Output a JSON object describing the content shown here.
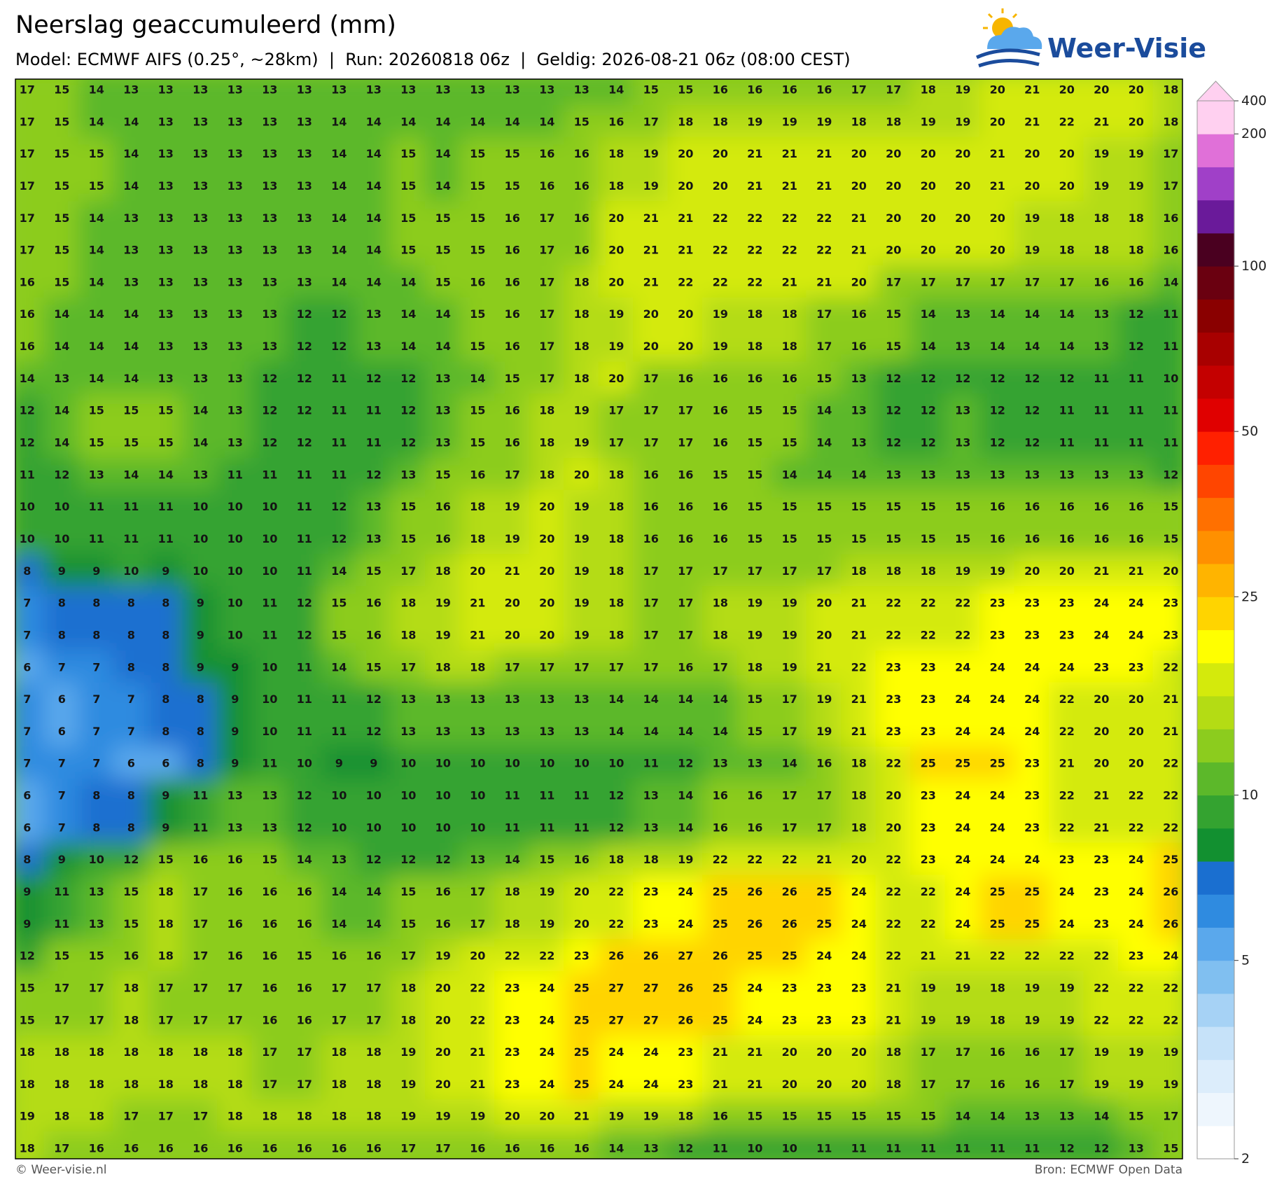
{
  "chart_data": {
    "type": "heatmap",
    "title": "Neerslag geaccumuleerd (mm)",
    "subtitle": "Model: ECMWF AIFS (0.25°, ~28km)  |  Run: 20260818 06z  |  Geldig: 2026-08-21 06z (08:00 CEST)",
    "values": [
      [
        17,
        15,
        14,
        13,
        13,
        13,
        13,
        13,
        13,
        13,
        13,
        13,
        13,
        13,
        13,
        13,
        13,
        14,
        15,
        15,
        16,
        16,
        16,
        16,
        17,
        17,
        18,
        19,
        20,
        21,
        20,
        20,
        20,
        18
      ],
      [
        17,
        15,
        14,
        14,
        13,
        13,
        13,
        13,
        13,
        14,
        14,
        14,
        14,
        14,
        14,
        14,
        15,
        16,
        17,
        18,
        18,
        19,
        19,
        19,
        18,
        18,
        19,
        19,
        20,
        21,
        22,
        21,
        20,
        18
      ],
      [
        17,
        15,
        15,
        14,
        13,
        13,
        13,
        13,
        13,
        14,
        14,
        15,
        14,
        15,
        15,
        16,
        16,
        18,
        19,
        20,
        20,
        21,
        21,
        21,
        20,
        20,
        20,
        20,
        21,
        20,
        20,
        19,
        19,
        17
      ],
      [
        17,
        15,
        15,
        14,
        13,
        13,
        13,
        13,
        13,
        14,
        14,
        15,
        14,
        15,
        15,
        16,
        16,
        18,
        19,
        20,
        20,
        21,
        21,
        21,
        20,
        20,
        20,
        20,
        21,
        20,
        20,
        19,
        19,
        17
      ],
      [
        17,
        15,
        14,
        13,
        13,
        13,
        13,
        13,
        13,
        14,
        14,
        15,
        15,
        15,
        16,
        17,
        16,
        20,
        21,
        21,
        22,
        22,
        22,
        22,
        21,
        20,
        20,
        20,
        20,
        19,
        18,
        18,
        18,
        16
      ],
      [
        17,
        15,
        14,
        13,
        13,
        13,
        13,
        13,
        13,
        14,
        14,
        15,
        15,
        15,
        16,
        17,
        16,
        20,
        21,
        21,
        22,
        22,
        22,
        22,
        21,
        20,
        20,
        20,
        20,
        19,
        18,
        18,
        18,
        16
      ],
      [
        16,
        15,
        14,
        13,
        13,
        13,
        13,
        13,
        13,
        14,
        14,
        14,
        15,
        16,
        16,
        17,
        18,
        20,
        21,
        22,
        22,
        22,
        21,
        21,
        20,
        17,
        17,
        17,
        17,
        17,
        17,
        16,
        16,
        14
      ],
      [
        16,
        14,
        14,
        14,
        13,
        13,
        13,
        13,
        12,
        12,
        13,
        14,
        14,
        15,
        16,
        17,
        18,
        19,
        20,
        20,
        19,
        18,
        18,
        17,
        16,
        15,
        14,
        13,
        14,
        14,
        14,
        13,
        12,
        11
      ],
      [
        16,
        14,
        14,
        14,
        13,
        13,
        13,
        13,
        12,
        12,
        13,
        14,
        14,
        15,
        16,
        17,
        18,
        19,
        20,
        20,
        19,
        18,
        18,
        17,
        16,
        15,
        14,
        13,
        14,
        14,
        14,
        13,
        12,
        11
      ],
      [
        14,
        13,
        14,
        14,
        13,
        13,
        13,
        12,
        12,
        11,
        12,
        12,
        13,
        14,
        15,
        17,
        18,
        20,
        17,
        16,
        16,
        16,
        16,
        15,
        13,
        12,
        12,
        12,
        12,
        12,
        12,
        11,
        11,
        10
      ],
      [
        12,
        14,
        15,
        15,
        15,
        14,
        13,
        12,
        12,
        11,
        11,
        12,
        13,
        15,
        16,
        18,
        19,
        17,
        17,
        17,
        16,
        15,
        15,
        14,
        13,
        12,
        12,
        13,
        12,
        12,
        11,
        11,
        11,
        11
      ],
      [
        12,
        14,
        15,
        15,
        15,
        14,
        13,
        12,
        12,
        11,
        11,
        12,
        13,
        15,
        16,
        18,
        19,
        17,
        17,
        17,
        16,
        15,
        15,
        14,
        13,
        12,
        12,
        13,
        12,
        12,
        11,
        11,
        11,
        11
      ],
      [
        11,
        12,
        13,
        14,
        14,
        13,
        11,
        11,
        11,
        11,
        12,
        13,
        15,
        16,
        17,
        18,
        20,
        18,
        16,
        16,
        15,
        15,
        14,
        14,
        14,
        13,
        13,
        13,
        13,
        13,
        13,
        13,
        13,
        12
      ],
      [
        10,
        10,
        11,
        11,
        11,
        10,
        10,
        10,
        11,
        12,
        13,
        15,
        16,
        18,
        19,
        20,
        19,
        18,
        16,
        16,
        16,
        15,
        15,
        15,
        15,
        15,
        15,
        15,
        16,
        16,
        16,
        16,
        16,
        15
      ],
      [
        10,
        10,
        11,
        11,
        11,
        10,
        10,
        10,
        11,
        12,
        13,
        15,
        16,
        18,
        19,
        20,
        19,
        18,
        16,
        16,
        16,
        15,
        15,
        15,
        15,
        15,
        15,
        15,
        16,
        16,
        16,
        16,
        16,
        15
      ],
      [
        8,
        9,
        9,
        10,
        9,
        10,
        10,
        10,
        11,
        14,
        15,
        17,
        18,
        20,
        21,
        20,
        19,
        18,
        17,
        17,
        17,
        17,
        17,
        17,
        18,
        18,
        18,
        19,
        19,
        20,
        20,
        21,
        21,
        20
      ],
      [
        7,
        8,
        8,
        8,
        8,
        9,
        10,
        11,
        12,
        15,
        16,
        18,
        19,
        21,
        20,
        20,
        19,
        18,
        17,
        17,
        18,
        19,
        19,
        20,
        21,
        22,
        22,
        22,
        23,
        23,
        23,
        24,
        24,
        23
      ],
      [
        7,
        8,
        8,
        8,
        8,
        9,
        10,
        11,
        12,
        15,
        16,
        18,
        19,
        21,
        20,
        20,
        19,
        18,
        17,
        17,
        18,
        19,
        19,
        20,
        21,
        22,
        22,
        22,
        23,
        23,
        23,
        24,
        24,
        23
      ],
      [
        6,
        7,
        7,
        8,
        8,
        9,
        9,
        10,
        11,
        14,
        15,
        17,
        18,
        18,
        17,
        17,
        17,
        17,
        17,
        16,
        17,
        18,
        19,
        21,
        22,
        23,
        23,
        24,
        24,
        24,
        24,
        23,
        23,
        22
      ],
      [
        7,
        6,
        7,
        7,
        8,
        8,
        9,
        10,
        11,
        11,
        12,
        13,
        13,
        13,
        13,
        13,
        13,
        14,
        14,
        14,
        14,
        15,
        17,
        19,
        21,
        23,
        23,
        24,
        24,
        24,
        22,
        20,
        20,
        21
      ],
      [
        7,
        6,
        7,
        7,
        8,
        8,
        9,
        10,
        11,
        11,
        12,
        13,
        13,
        13,
        13,
        13,
        13,
        14,
        14,
        14,
        14,
        15,
        17,
        19,
        21,
        23,
        23,
        24,
        24,
        24,
        22,
        20,
        20,
        21
      ],
      [
        7,
        7,
        7,
        6,
        6,
        8,
        9,
        11,
        10,
        9,
        9,
        10,
        10,
        10,
        10,
        10,
        10,
        10,
        11,
        12,
        13,
        13,
        14,
        16,
        18,
        22,
        25,
        25,
        25,
        23,
        21,
        20,
        20,
        22
      ],
      [
        6,
        7,
        8,
        8,
        9,
        11,
        13,
        13,
        12,
        10,
        10,
        10,
        10,
        10,
        11,
        11,
        11,
        12,
        13,
        14,
        16,
        16,
        17,
        17,
        18,
        20,
        23,
        24,
        24,
        23,
        22,
        21,
        22,
        22
      ],
      [
        6,
        7,
        8,
        8,
        9,
        11,
        13,
        13,
        12,
        10,
        10,
        10,
        10,
        10,
        11,
        11,
        11,
        12,
        13,
        14,
        16,
        16,
        17,
        17,
        18,
        20,
        23,
        24,
        24,
        23,
        22,
        21,
        22,
        22
      ],
      [
        8,
        9,
        10,
        12,
        15,
        16,
        16,
        15,
        14,
        13,
        12,
        12,
        12,
        13,
        14,
        15,
        16,
        18,
        18,
        19,
        22,
        22,
        22,
        21,
        20,
        22,
        23,
        24,
        24,
        24,
        23,
        23,
        24,
        25
      ],
      [
        9,
        11,
        13,
        15,
        18,
        17,
        16,
        16,
        16,
        14,
        14,
        15,
        16,
        17,
        18,
        19,
        20,
        22,
        23,
        24,
        25,
        26,
        26,
        25,
        24,
        22,
        22,
        24,
        25,
        25,
        24,
        23,
        24,
        26
      ],
      [
        9,
        11,
        13,
        15,
        18,
        17,
        16,
        16,
        16,
        14,
        14,
        15,
        16,
        17,
        18,
        19,
        20,
        22,
        23,
        24,
        25,
        26,
        26,
        25,
        24,
        22,
        22,
        24,
        25,
        25,
        24,
        23,
        24,
        26
      ],
      [
        12,
        15,
        15,
        16,
        18,
        17,
        16,
        16,
        15,
        16,
        16,
        17,
        19,
        20,
        22,
        22,
        23,
        26,
        26,
        27,
        26,
        25,
        25,
        24,
        24,
        22,
        21,
        21,
        22,
        22,
        22,
        22,
        23,
        24
      ],
      [
        15,
        17,
        17,
        18,
        17,
        17,
        17,
        16,
        16,
        17,
        17,
        18,
        20,
        22,
        23,
        24,
        25,
        27,
        27,
        26,
        25,
        24,
        23,
        23,
        23,
        21,
        19,
        19,
        18,
        19,
        19,
        22,
        22,
        22
      ],
      [
        15,
        17,
        17,
        18,
        17,
        17,
        17,
        16,
        16,
        17,
        17,
        18,
        20,
        22,
        23,
        24,
        25,
        27,
        27,
        26,
        25,
        24,
        23,
        23,
        23,
        21,
        19,
        19,
        18,
        19,
        19,
        22,
        22,
        22
      ],
      [
        18,
        18,
        18,
        18,
        18,
        18,
        18,
        17,
        17,
        18,
        18,
        19,
        20,
        21,
        23,
        24,
        25,
        24,
        24,
        23,
        21,
        21,
        20,
        20,
        20,
        18,
        17,
        17,
        16,
        16,
        17,
        19,
        19,
        19
      ],
      [
        18,
        18,
        18,
        18,
        18,
        18,
        18,
        17,
        17,
        18,
        18,
        19,
        20,
        21,
        23,
        24,
        25,
        24,
        24,
        23,
        21,
        21,
        20,
        20,
        20,
        18,
        17,
        17,
        16,
        16,
        17,
        19,
        19,
        19
      ],
      [
        19,
        18,
        18,
        17,
        17,
        17,
        18,
        18,
        18,
        18,
        18,
        19,
        19,
        19,
        20,
        20,
        21,
        19,
        19,
        18,
        16,
        15,
        15,
        15,
        15,
        15,
        15,
        14,
        14,
        13,
        13,
        14,
        15,
        17
      ],
      [
        18,
        17,
        16,
        16,
        16,
        16,
        16,
        16,
        16,
        16,
        16,
        17,
        17,
        16,
        16,
        16,
        16,
        14,
        13,
        12,
        11,
        10,
        10,
        11,
        11,
        11,
        11,
        11,
        11,
        11,
        12,
        12,
        13,
        15
      ]
    ],
    "colorbar": {
      "ticks": [
        2,
        5,
        10,
        25,
        50,
        100,
        200,
        400
      ],
      "colors": [
        "#ffffff",
        "#eef6fd",
        "#dcedfb",
        "#c6e2f9",
        "#a6d2f5",
        "#80bff0",
        "#5aa8ec",
        "#2f8be0",
        "#1a6fd0",
        "#129030",
        "#34a330",
        "#5cb82a",
        "#8ccc1e",
        "#b4dc14",
        "#d4ea0c",
        "#ffff00",
        "#ffd400",
        "#ffb400",
        "#ff9000",
        "#ff7000",
        "#ff4500",
        "#ff2000",
        "#e00000",
        "#c40000",
        "#a80000",
        "#8a0000",
        "#6a0010",
        "#4a0020",
        "#6a1a9a",
        "#a040c8",
        "#e070d8",
        "#ffd0f0"
      ]
    }
  },
  "logo": {
    "text": "Weer-Visie"
  },
  "footer": {
    "left": "© Weer-visie.nl",
    "right": "Bron: ECMWF Open Data"
  }
}
